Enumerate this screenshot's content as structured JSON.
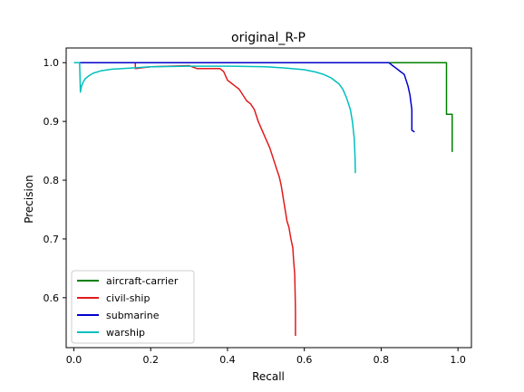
{
  "chart_data": {
    "type": "line",
    "title": "original_R-P",
    "xlabel": "Recall",
    "ylabel": "Precision",
    "xlim": [
      -0.02,
      1.035
    ],
    "ylim": [
      0.515,
      1.025
    ],
    "xticks": [
      0.0,
      0.2,
      0.4,
      0.6,
      0.8,
      1.0
    ],
    "xtick_labels": [
      "0.0",
      "0.2",
      "0.4",
      "0.6",
      "0.8",
      "1.0"
    ],
    "yticks": [
      0.6,
      0.7,
      0.8,
      0.9,
      1.0
    ],
    "ytick_labels": [
      "0.6",
      "0.7",
      "0.8",
      "0.9",
      "1.0"
    ],
    "grid": false,
    "legend_position": "lower-left",
    "series": [
      {
        "name": "aircraft-carrier",
        "color": "#008000",
        "x": [
          0.0,
          0.97,
          0.97,
          0.975,
          0.975,
          0.985,
          0.985
        ],
        "y": [
          1.0,
          1.0,
          0.912,
          0.912,
          0.912,
          0.912,
          0.848
        ]
      },
      {
        "name": "civil-ship",
        "color": "#e31a1c",
        "x": [
          0.0,
          0.16,
          0.16,
          0.2,
          0.25,
          0.3,
          0.32,
          0.33,
          0.38,
          0.39,
          0.4,
          0.41,
          0.42,
          0.43,
          0.44,
          0.45,
          0.46,
          0.47,
          0.48,
          0.49,
          0.5,
          0.51,
          0.52,
          0.53,
          0.535,
          0.54,
          0.545,
          0.55,
          0.555,
          0.56,
          0.565,
          0.57,
          0.572,
          0.575,
          0.577,
          0.577
        ],
        "y": [
          1.0,
          1.0,
          0.99,
          0.993,
          0.994,
          0.995,
          0.99,
          0.99,
          0.99,
          0.985,
          0.97,
          0.965,
          0.96,
          0.955,
          0.945,
          0.935,
          0.93,
          0.92,
          0.9,
          0.885,
          0.87,
          0.855,
          0.835,
          0.815,
          0.805,
          0.79,
          0.77,
          0.75,
          0.73,
          0.72,
          0.7,
          0.685,
          0.665,
          0.64,
          0.58,
          0.535
        ]
      },
      {
        "name": "submarine",
        "color": "#0000cc",
        "x": [
          0.0,
          0.82,
          0.83,
          0.84,
          0.85,
          0.86,
          0.865,
          0.87,
          0.875,
          0.88,
          0.88,
          0.887
        ],
        "y": [
          1.0,
          1.0,
          0.995,
          0.99,
          0.985,
          0.98,
          0.97,
          0.96,
          0.945,
          0.92,
          0.885,
          0.882
        ]
      },
      {
        "name": "warship",
        "color": "#00bfbf",
        "x": [
          0.0,
          0.015,
          0.017,
          0.02,
          0.025,
          0.03,
          0.04,
          0.05,
          0.07,
          0.1,
          0.15,
          0.2,
          0.3,
          0.4,
          0.5,
          0.55,
          0.6,
          0.63,
          0.65,
          0.67,
          0.69,
          0.7,
          0.71,
          0.72,
          0.725,
          0.73,
          0.732,
          0.733
        ],
        "y": [
          1.0,
          1.0,
          0.95,
          0.96,
          0.968,
          0.973,
          0.978,
          0.982,
          0.986,
          0.989,
          0.991,
          0.993,
          0.994,
          0.994,
          0.993,
          0.991,
          0.988,
          0.984,
          0.98,
          0.974,
          0.964,
          0.955,
          0.94,
          0.92,
          0.9,
          0.87,
          0.84,
          0.812
        ]
      }
    ]
  }
}
